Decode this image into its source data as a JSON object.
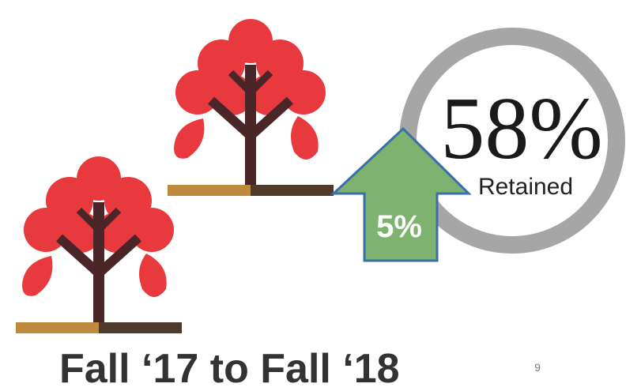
{
  "headline": "58%",
  "headline_caption": "Retained",
  "change": "5%",
  "period": "Fall ‘17 to Fall ‘18",
  "page_number": "9"
}
